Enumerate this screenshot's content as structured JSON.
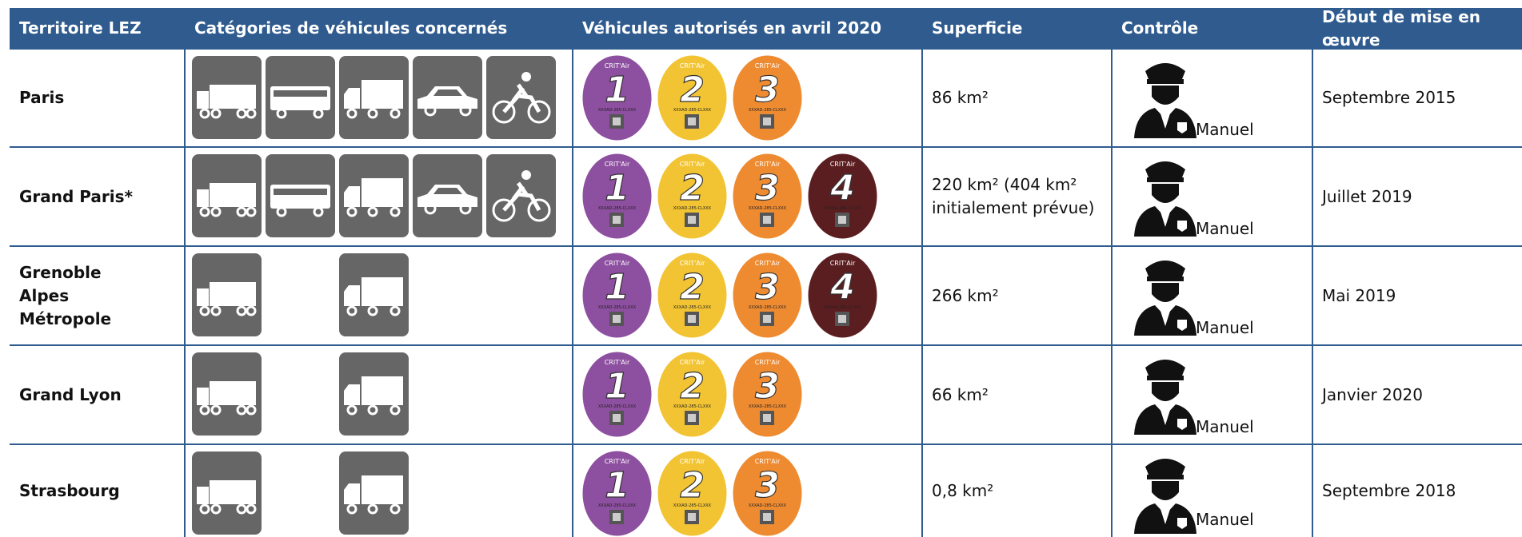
{
  "header": [
    "Territoire LEZ",
    "Catégories de véhicules concernés",
    "Véhicules autorisés en avril 2020",
    "Superficie",
    "Contrôle",
    "Début de mise en œuvre"
  ],
  "sticker_brand": "CRIT'Air",
  "sticker_code": "XXXAD-285-CLXXX",
  "rows": [
    {
      "territory": "Paris",
      "stickers": [
        1,
        2,
        3
      ],
      "area": "86 km²",
      "control": "Manuel",
      "start": "Septembre 2015"
    },
    {
      "territory": "Grand Paris*",
      "stickers": [
        1,
        2,
        3,
        4
      ],
      "area": "220 km² (404 km² initialement prévue)",
      "control": "Manuel",
      "start": "Juillet 2019"
    },
    {
      "territory": "Grenoble Alpes Métropole",
      "stickers": [
        1,
        2,
        3,
        4
      ],
      "area": "266 km²",
      "control": "Manuel",
      "start": "Mai 2019"
    },
    {
      "territory": "Grand Lyon",
      "stickers": [
        1,
        2,
        3
      ],
      "area": "66 km²",
      "control": "Manuel",
      "start": "Janvier 2020"
    },
    {
      "territory": "Strasbourg",
      "stickers": [
        1,
        2,
        3
      ],
      "area": "0,8 km²",
      "control": "Manuel",
      "start": "Septembre 2018"
    }
  ]
}
